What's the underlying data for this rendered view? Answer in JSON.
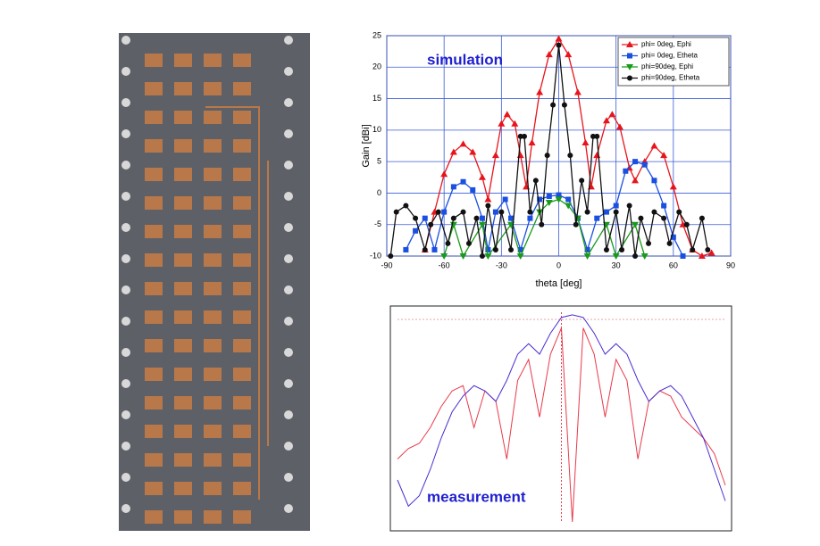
{
  "chart_data": [
    {
      "type": "line",
      "annotation": "simulation",
      "xlabel": "theta [deg]",
      "ylabel": "Gain [dBi]",
      "xlim": [
        -90,
        90
      ],
      "xticks": [
        -90,
        -60,
        -30,
        0,
        30,
        60,
        90
      ],
      "ylim": [
        -10,
        25
      ],
      "yticks": [
        -10,
        -5,
        0,
        5,
        10,
        15,
        20,
        25
      ],
      "grid": true,
      "legend": "upper right",
      "series": [
        {
          "name": "phi= 0deg, Ephi",
          "color": "#e8141b",
          "marker": "triangle",
          "x": [
            -70,
            -65,
            -60,
            -55,
            -50,
            -45,
            -40,
            -37,
            -33,
            -30,
            -27,
            -23,
            -20,
            -17,
            -14,
            -10,
            -5,
            0,
            5,
            10,
            14,
            17,
            20,
            25,
            28,
            32,
            37,
            40,
            45,
            50,
            55,
            60,
            65,
            70,
            75,
            80
          ],
          "values": [
            -9,
            -3,
            3,
            6.5,
            7.8,
            6.5,
            2.5,
            -1,
            6,
            11,
            12.5,
            11,
            6,
            1,
            8,
            16,
            22,
            24.5,
            22,
            16,
            8,
            1,
            6,
            11.5,
            12.5,
            10.5,
            4,
            2,
            5,
            7.5,
            6,
            1,
            -5,
            -9,
            -10,
            -9.5
          ]
        },
        {
          "name": "phi= 0deg, Etheta",
          "color": "#1b4fe0",
          "marker": "square",
          "x": [
            -80,
            -75,
            -70,
            -65,
            -60,
            -55,
            -50,
            -45,
            -40,
            -37,
            -33,
            -28,
            -25,
            -20,
            -15,
            -10,
            -5,
            0,
            5,
            10,
            15,
            20,
            25,
            30,
            35,
            40,
            45,
            50,
            55,
            60,
            65
          ],
          "values": [
            -9,
            -6,
            -4,
            -9,
            -3,
            1,
            1.8,
            0.5,
            -4,
            -9,
            -3,
            -1,
            -4,
            -9,
            -4,
            -1,
            -0.5,
            -0.3,
            -1,
            -4,
            -9,
            -4,
            -3,
            -2,
            3.5,
            5,
            4.5,
            2,
            -2,
            -7,
            -10
          ]
        },
        {
          "name": "phi=90deg, Ephi",
          "color": "#1a9a1a",
          "marker": "down-triangle",
          "x": [
            -60,
            -55,
            -50,
            -40,
            -37,
            -25,
            -20,
            -10,
            -5,
            0,
            5,
            10,
            15,
            25,
            30,
            40,
            45
          ],
          "values": [
            -10,
            -5,
            -10,
            -5,
            -10,
            -5,
            -10,
            -3,
            -1.5,
            -1,
            -2,
            -4,
            -10,
            -5,
            -10,
            -5,
            -10
          ]
        },
        {
          "name": "phi=90deg, Etheta",
          "color": "#111111",
          "marker": "circle",
          "x": [
            -88,
            -85,
            -80,
            -75,
            -70,
            -67,
            -63,
            -58,
            -55,
            -50,
            -47,
            -43,
            -40,
            -37,
            -33,
            -30,
            -25,
            -20,
            -18,
            -15,
            -12,
            -9,
            -6,
            -3,
            0,
            3,
            6,
            9,
            12,
            15,
            18,
            20,
            25,
            30,
            33,
            37,
            40,
            43,
            47,
            50,
            55,
            58,
            63,
            67,
            70,
            75,
            78
          ],
          "values": [
            -10,
            -3,
            -2,
            -4,
            -9,
            -5,
            -3,
            -8,
            -4,
            -3,
            -8,
            -4,
            -10,
            -2,
            -9,
            -3,
            -9,
            9,
            9,
            -3,
            2,
            -5,
            6,
            14,
            23.5,
            14,
            6,
            -5,
            2,
            -3,
            9,
            9,
            -9,
            -3,
            -9,
            -2,
            -10,
            -4,
            -8,
            -3,
            -4,
            -8,
            -3,
            -5,
            -9,
            -4,
            -9
          ]
        }
      ]
    },
    {
      "type": "line",
      "annotation": "measurement",
      "ylim": [
        -40,
        0
      ],
      "series": [
        {
          "color": "#e83a4a",
          "values": [
            -28,
            -26,
            -25,
            -22,
            -18,
            -15,
            -14,
            -22,
            -15,
            -17,
            -28,
            -13,
            -9,
            -20,
            -8,
            -3,
            -40,
            -3,
            -8,
            -20,
            -9,
            -13,
            -28,
            -17,
            -15,
            -16,
            -20,
            -22,
            -24,
            -27,
            -33
          ]
        },
        {
          "color": "#4a2fd0",
          "values": [
            -32,
            -37,
            -35,
            -30,
            -24,
            -19,
            -16,
            -14,
            -15,
            -17,
            -13,
            -8,
            -6,
            -8,
            -4,
            -1,
            -0.5,
            -1,
            -4,
            -8,
            -6,
            -8,
            -13,
            -17,
            -15,
            -14,
            -16,
            -20,
            -24,
            -30,
            -36
          ]
        }
      ]
    }
  ]
}
